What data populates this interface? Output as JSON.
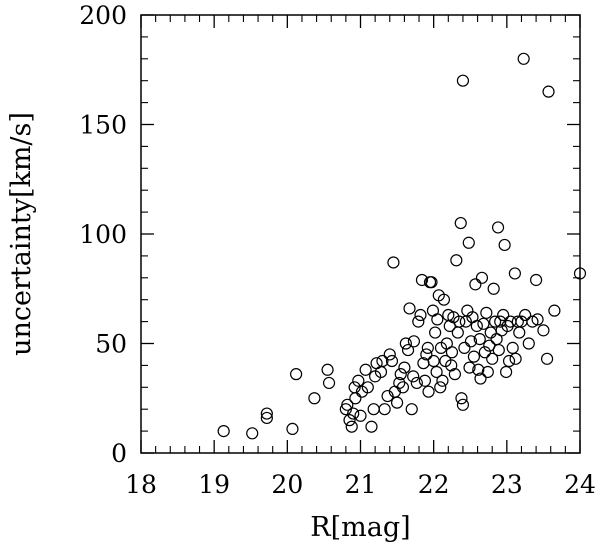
{
  "chart_data": {
    "type": "scatter",
    "title": "",
    "xlabel": "R[mag]",
    "ylabel": "uncertainty[km/s]",
    "xlim": [
      18,
      24
    ],
    "ylim": [
      0,
      200
    ],
    "x_ticks": [
      18,
      19,
      20,
      21,
      22,
      23,
      24
    ],
    "y_ticks": [
      0,
      50,
      100,
      150,
      200
    ],
    "x_tick_labels": [
      "18",
      "19",
      "20",
      "21",
      "22",
      "23",
      "24"
    ],
    "y_tick_labels": [
      "0",
      "50",
      "100",
      "150",
      "200"
    ],
    "x_minor_step": 0.2,
    "y_minor_step": 10,
    "marker": "open-circle",
    "grid": false,
    "legend": "none",
    "series": [
      {
        "points": [
          [
            19.13,
            10
          ],
          [
            19.52,
            9
          ],
          [
            19.72,
            16
          ],
          [
            19.72,
            18
          ],
          [
            20.07,
            11
          ],
          [
            20.12,
            36
          ],
          [
            20.37,
            25
          ],
          [
            20.55,
            38
          ],
          [
            20.57,
            32
          ],
          [
            20.8,
            20
          ],
          [
            20.82,
            22
          ],
          [
            20.85,
            15
          ],
          [
            20.88,
            12
          ],
          [
            20.9,
            18
          ],
          [
            20.92,
            30
          ],
          [
            20.93,
            25
          ],
          [
            20.97,
            33
          ],
          [
            21.0,
            17
          ],
          [
            21.02,
            28
          ],
          [
            21.07,
            38
          ],
          [
            21.1,
            30
          ],
          [
            21.15,
            12
          ],
          [
            21.18,
            20
          ],
          [
            21.2,
            35
          ],
          [
            21.22,
            41
          ],
          [
            21.28,
            37
          ],
          [
            21.3,
            42
          ],
          [
            21.33,
            20
          ],
          [
            21.37,
            26
          ],
          [
            21.4,
            45
          ],
          [
            21.43,
            42
          ],
          [
            21.45,
            87
          ],
          [
            21.47,
            28
          ],
          [
            21.5,
            23
          ],
          [
            21.53,
            32
          ],
          [
            21.55,
            36
          ],
          [
            21.58,
            30
          ],
          [
            21.6,
            39
          ],
          [
            21.62,
            50
          ],
          [
            21.65,
            47
          ],
          [
            21.67,
            66
          ],
          [
            21.7,
            20
          ],
          [
            21.72,
            35
          ],
          [
            21.73,
            51
          ],
          [
            21.77,
            32
          ],
          [
            21.79,
            60
          ],
          [
            21.82,
            63
          ],
          [
            21.84,
            79
          ],
          [
            21.86,
            41
          ],
          [
            21.88,
            33
          ],
          [
            21.9,
            45
          ],
          [
            21.92,
            48
          ],
          [
            21.93,
            28
          ],
          [
            21.95,
            78
          ],
          [
            21.97,
            78
          ],
          [
            21.99,
            65
          ],
          [
            22.0,
            42
          ],
          [
            22.02,
            55
          ],
          [
            22.04,
            37
          ],
          [
            22.05,
            61
          ],
          [
            22.07,
            72
          ],
          [
            22.09,
            30
          ],
          [
            22.1,
            48
          ],
          [
            22.12,
            33
          ],
          [
            22.14,
            70
          ],
          [
            22.16,
            42
          ],
          [
            22.18,
            50
          ],
          [
            22.2,
            63
          ],
          [
            22.22,
            58
          ],
          [
            22.24,
            40
          ],
          [
            22.25,
            46
          ],
          [
            22.27,
            62
          ],
          [
            22.29,
            36
          ],
          [
            22.31,
            88
          ],
          [
            22.33,
            55
          ],
          [
            22.35,
            60
          ],
          [
            22.37,
            105
          ],
          [
            22.38,
            25
          ],
          [
            22.4,
            22
          ],
          [
            22.4,
            170
          ],
          [
            22.42,
            48
          ],
          [
            22.44,
            60
          ],
          [
            22.46,
            65
          ],
          [
            22.48,
            96
          ],
          [
            22.49,
            39
          ],
          [
            22.51,
            51
          ],
          [
            22.53,
            62
          ],
          [
            22.55,
            44
          ],
          [
            22.57,
            77
          ],
          [
            22.59,
            58
          ],
          [
            22.61,
            38
          ],
          [
            22.63,
            52
          ],
          [
            22.64,
            34
          ],
          [
            22.66,
            80
          ],
          [
            22.68,
            59
          ],
          [
            22.7,
            46
          ],
          [
            22.72,
            64
          ],
          [
            22.74,
            37
          ],
          [
            22.76,
            49
          ],
          [
            22.78,
            55
          ],
          [
            22.8,
            43
          ],
          [
            22.82,
            75
          ],
          [
            22.84,
            60
          ],
          [
            22.86,
            52
          ],
          [
            22.88,
            103
          ],
          [
            22.89,
            47
          ],
          [
            22.91,
            60
          ],
          [
            22.93,
            56
          ],
          [
            22.95,
            63
          ],
          [
            22.97,
            95
          ],
          [
            22.99,
            37
          ],
          [
            23.01,
            58
          ],
          [
            23.03,
            42
          ],
          [
            23.05,
            60
          ],
          [
            23.08,
            48
          ],
          [
            23.11,
            82
          ],
          [
            23.12,
            43
          ],
          [
            23.15,
            60
          ],
          [
            23.17,
            55
          ],
          [
            23.2,
            60
          ],
          [
            23.23,
            180
          ],
          [
            23.25,
            63
          ],
          [
            23.3,
            50
          ],
          [
            23.35,
            60
          ],
          [
            23.4,
            79
          ],
          [
            23.42,
            61
          ],
          [
            23.5,
            56
          ],
          [
            23.55,
            43
          ],
          [
            23.57,
            165
          ],
          [
            23.65,
            65
          ],
          [
            24.0,
            82
          ]
        ]
      }
    ]
  }
}
